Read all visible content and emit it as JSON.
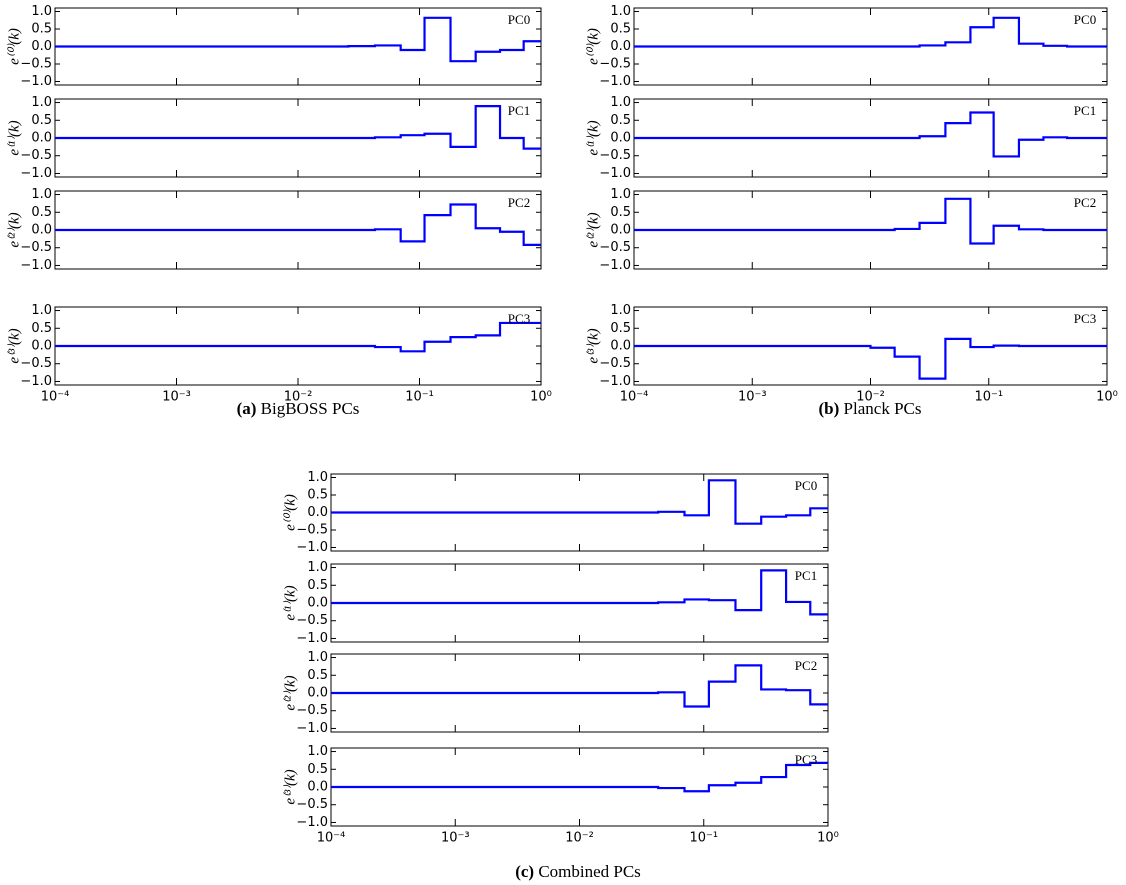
{
  "chart_data": [
    {
      "type": "line",
      "drawstyle": "steps-post",
      "label": "PC0",
      "ylabel": "e⁽⁰⁾(k)",
      "color": "#0000ff",
      "xscale": "log",
      "xlim": [
        0.0001,
        1
      ],
      "ylim": [
        -1.1,
        1.1
      ],
      "xticks": [
        0.0001,
        0.001,
        0.01,
        0.1,
        1
      ],
      "yticks": [
        {
          "value": -1,
          "label": "−1.0"
        },
        {
          "value": -0.5,
          "label": "−0.5"
        },
        {
          "value": 0,
          "label": "0.0"
        },
        {
          "value": 0.5,
          "label": "0.5"
        },
        {
          "value": 1,
          "label": "1.0"
        }
      ],
      "x": [
        0.0001,
        0.01,
        0.016,
        0.026,
        0.043,
        0.07,
        0.11,
        0.18,
        0.29,
        0.46,
        0.72,
        1
      ],
      "values": [
        0,
        0,
        0,
        0.01,
        0.03,
        -0.1,
        0.82,
        -0.42,
        -0.15,
        -0.1,
        0.15,
        0.15
      ]
    },
    {
      "type": "line",
      "drawstyle": "steps-post",
      "label": "PC1",
      "ylabel": "e⁽¹⁾(k)",
      "color": "#0000ff",
      "xscale": "log",
      "xlim": [
        0.0001,
        1
      ],
      "ylim": [
        -1.1,
        1.1
      ],
      "xticks": [
        0.0001,
        0.001,
        0.01,
        0.1,
        1
      ],
      "yticks": [
        {
          "value": -1,
          "label": "−1.0"
        },
        {
          "value": -0.5,
          "label": "−0.5"
        },
        {
          "value": 0,
          "label": "0.0"
        },
        {
          "value": 0.5,
          "label": "0.5"
        },
        {
          "value": 1,
          "label": "1.0"
        }
      ],
      "x": [
        0.0001,
        0.01,
        0.016,
        0.026,
        0.043,
        0.07,
        0.11,
        0.18,
        0.29,
        0.46,
        0.72,
        1
      ],
      "values": [
        0,
        0,
        0,
        0,
        0.02,
        0.08,
        0.12,
        -0.25,
        0.9,
        0,
        -0.3,
        -0.3
      ]
    },
    {
      "type": "line",
      "drawstyle": "steps-post",
      "label": "PC2",
      "ylabel": "e⁽²⁾(k)",
      "color": "#0000ff",
      "xscale": "log",
      "xlim": [
        0.0001,
        1
      ],
      "ylim": [
        -1.1,
        1.1
      ],
      "xticks": [
        0.0001,
        0.001,
        0.01,
        0.1,
        1
      ],
      "yticks": [
        {
          "value": -1,
          "label": "−1.0"
        },
        {
          "value": -0.5,
          "label": "−0.5"
        },
        {
          "value": 0,
          "label": "0.0"
        },
        {
          "value": 0.5,
          "label": "0.5"
        },
        {
          "value": 1,
          "label": "1.0"
        }
      ],
      "x": [
        0.0001,
        0.01,
        0.016,
        0.026,
        0.043,
        0.07,
        0.11,
        0.18,
        0.29,
        0.46,
        0.72,
        1
      ],
      "values": [
        0,
        0,
        0,
        0,
        0.02,
        -0.32,
        0.42,
        0.72,
        0.05,
        -0.05,
        -0.42,
        -0.42
      ]
    },
    {
      "type": "line",
      "drawstyle": "steps-post",
      "label": "PC3",
      "ylabel": "e⁽³⁾(k)",
      "color": "#0000ff",
      "xscale": "log",
      "xlim": [
        0.0001,
        1
      ],
      "ylim": [
        -1.1,
        1.1
      ],
      "xticks": [
        {
          "value": 0.0001,
          "label": "10⁻⁴"
        },
        {
          "value": 0.001,
          "label": "10⁻³"
        },
        {
          "value": 0.01,
          "label": "10⁻²"
        },
        {
          "value": 0.1,
          "label": "10⁻¹"
        },
        {
          "value": 1,
          "label": "10⁰"
        }
      ],
      "yticks": [
        {
          "value": -1,
          "label": "−1.0"
        },
        {
          "value": -0.5,
          "label": "−0.5"
        },
        {
          "value": 0,
          "label": "0.0"
        },
        {
          "value": 0.5,
          "label": "0.5"
        },
        {
          "value": 1,
          "label": "1.0"
        }
      ],
      "x": [
        0.0001,
        0.01,
        0.016,
        0.026,
        0.043,
        0.07,
        0.11,
        0.18,
        0.29,
        0.46,
        0.72,
        1
      ],
      "values": [
        0,
        0,
        0,
        0,
        -0.03,
        -0.15,
        0.12,
        0.25,
        0.3,
        0.65,
        0.65,
        0.65
      ]
    },
    {
      "type": "line",
      "drawstyle": "steps-post",
      "label": "PC0",
      "ylabel": "e⁽⁰⁾(k)",
      "color": "#0000ff",
      "xscale": "log",
      "xlim": [
        0.0001,
        1
      ],
      "ylim": [
        -1.1,
        1.1
      ],
      "xticks": [
        0.0001,
        0.001,
        0.01,
        0.1,
        1
      ],
      "yticks": [
        {
          "value": -1,
          "label": "−1.0"
        },
        {
          "value": -0.5,
          "label": "−0.5"
        },
        {
          "value": 0,
          "label": "0.0"
        },
        {
          "value": 0.5,
          "label": "0.5"
        },
        {
          "value": 1,
          "label": "1.0"
        }
      ],
      "x": [
        0.0001,
        0.01,
        0.016,
        0.026,
        0.043,
        0.07,
        0.11,
        0.18,
        0.29,
        0.46,
        0.72,
        1
      ],
      "values": [
        0,
        0,
        0,
        0.03,
        0.12,
        0.55,
        0.82,
        0.08,
        0.02,
        0,
        0,
        0
      ]
    },
    {
      "type": "line",
      "drawstyle": "steps-post",
      "label": "PC1",
      "ylabel": "e⁽¹⁾(k)",
      "color": "#0000ff",
      "xscale": "log",
      "xlim": [
        0.0001,
        1
      ],
      "ylim": [
        -1.1,
        1.1
      ],
      "xticks": [
        0.0001,
        0.001,
        0.01,
        0.1,
        1
      ],
      "yticks": [
        {
          "value": -1,
          "label": "−1.0"
        },
        {
          "value": -0.5,
          "label": "−0.5"
        },
        {
          "value": 0,
          "label": "0.0"
        },
        {
          "value": 0.5,
          "label": "0.5"
        },
        {
          "value": 1,
          "label": "1.0"
        }
      ],
      "x": [
        0.0001,
        0.01,
        0.016,
        0.026,
        0.043,
        0.07,
        0.11,
        0.18,
        0.29,
        0.46,
        0.72,
        1
      ],
      "values": [
        0,
        0,
        0,
        0.05,
        0.42,
        0.72,
        -0.52,
        -0.05,
        0.02,
        0,
        0,
        0
      ]
    },
    {
      "type": "line",
      "drawstyle": "steps-post",
      "label": "PC2",
      "ylabel": "e⁽²⁾(k)",
      "color": "#0000ff",
      "xscale": "log",
      "xlim": [
        0.0001,
        1
      ],
      "ylim": [
        -1.1,
        1.1
      ],
      "xticks": [
        0.0001,
        0.001,
        0.01,
        0.1,
        1
      ],
      "yticks": [
        {
          "value": -1,
          "label": "−1.0"
        },
        {
          "value": -0.5,
          "label": "−0.5"
        },
        {
          "value": 0,
          "label": "0.0"
        },
        {
          "value": 0.5,
          "label": "0.5"
        },
        {
          "value": 1,
          "label": "1.0"
        }
      ],
      "x": [
        0.0001,
        0.01,
        0.016,
        0.026,
        0.043,
        0.07,
        0.11,
        0.18,
        0.29,
        0.46,
        0.72,
        1
      ],
      "values": [
        0,
        0,
        0.03,
        0.2,
        0.88,
        -0.38,
        0.12,
        0.02,
        0,
        0,
        0,
        0
      ]
    },
    {
      "type": "line",
      "drawstyle": "steps-post",
      "label": "PC3",
      "ylabel": "e⁽³⁾(k)",
      "color": "#0000ff",
      "xscale": "log",
      "xlim": [
        0.0001,
        1
      ],
      "ylim": [
        -1.1,
        1.1
      ],
      "xticks": [
        {
          "value": 0.0001,
          "label": "10⁻⁴"
        },
        {
          "value": 0.001,
          "label": "10⁻³"
        },
        {
          "value": 0.01,
          "label": "10⁻²"
        },
        {
          "value": 0.1,
          "label": "10⁻¹"
        },
        {
          "value": 1,
          "label": "10⁰"
        }
      ],
      "yticks": [
        {
          "value": -1,
          "label": "−1.0"
        },
        {
          "value": -0.5,
          "label": "−0.5"
        },
        {
          "value": 0,
          "label": "0.0"
        },
        {
          "value": 0.5,
          "label": "0.5"
        },
        {
          "value": 1,
          "label": "1.0"
        }
      ],
      "x": [
        0.0001,
        0.01,
        0.016,
        0.026,
        0.043,
        0.07,
        0.11,
        0.18,
        0.29,
        0.46,
        0.72,
        1
      ],
      "values": [
        0,
        -0.05,
        -0.3,
        -0.92,
        0.2,
        -0.03,
        0.01,
        0,
        0,
        0,
        0,
        0
      ]
    },
    {
      "type": "line",
      "drawstyle": "steps-post",
      "label": "PC0",
      "ylabel": "e⁽⁰⁾(k)",
      "color": "#0000ff",
      "xscale": "log",
      "xlim": [
        0.0001,
        1
      ],
      "ylim": [
        -1.1,
        1.1
      ],
      "xticks": [
        0.0001,
        0.001,
        0.01,
        0.1,
        1
      ],
      "yticks": [
        {
          "value": -1,
          "label": "−1.0"
        },
        {
          "value": -0.5,
          "label": "−0.5"
        },
        {
          "value": 0,
          "label": "0.0"
        },
        {
          "value": 0.5,
          "label": "0.5"
        },
        {
          "value": 1,
          "label": "1.0"
        }
      ],
      "x": [
        0.0001,
        0.01,
        0.016,
        0.026,
        0.043,
        0.07,
        0.11,
        0.18,
        0.29,
        0.46,
        0.72,
        1
      ],
      "values": [
        0,
        0,
        0,
        0,
        0.02,
        -0.08,
        0.92,
        -0.32,
        -0.12,
        -0.08,
        0.12,
        0.12
      ]
    },
    {
      "type": "line",
      "drawstyle": "steps-post",
      "label": "PC1",
      "ylabel": "e⁽¹⁾(k)",
      "color": "#0000ff",
      "xscale": "log",
      "xlim": [
        0.0001,
        1
      ],
      "ylim": [
        -1.1,
        1.1
      ],
      "xticks": [
        0.0001,
        0.001,
        0.01,
        0.1,
        1
      ],
      "yticks": [
        {
          "value": -1,
          "label": "−1.0"
        },
        {
          "value": -0.5,
          "label": "−0.5"
        },
        {
          "value": 0,
          "label": "0.0"
        },
        {
          "value": 0.5,
          "label": "0.5"
        },
        {
          "value": 1,
          "label": "1.0"
        }
      ],
      "x": [
        0.0001,
        0.01,
        0.016,
        0.026,
        0.043,
        0.07,
        0.11,
        0.18,
        0.29,
        0.46,
        0.72,
        1
      ],
      "values": [
        0,
        0,
        0,
        0,
        0.02,
        0.1,
        0.08,
        -0.2,
        0.92,
        0.03,
        -0.32,
        -0.32
      ]
    },
    {
      "type": "line",
      "drawstyle": "steps-post",
      "label": "PC2",
      "ylabel": "e⁽²⁾(k)",
      "color": "#0000ff",
      "xscale": "log",
      "xlim": [
        0.0001,
        1
      ],
      "ylim": [
        -1.1,
        1.1
      ],
      "xticks": [
        0.0001,
        0.001,
        0.01,
        0.1,
        1
      ],
      "yticks": [
        {
          "value": -1,
          "label": "−1.0"
        },
        {
          "value": -0.5,
          "label": "−0.5"
        },
        {
          "value": 0,
          "label": "0.0"
        },
        {
          "value": 0.5,
          "label": "0.5"
        },
        {
          "value": 1,
          "label": "1.0"
        }
      ],
      "x": [
        0.0001,
        0.01,
        0.016,
        0.026,
        0.043,
        0.07,
        0.11,
        0.18,
        0.29,
        0.46,
        0.72,
        1
      ],
      "values": [
        0,
        0,
        0,
        0,
        0.02,
        -0.38,
        0.32,
        0.78,
        0.1,
        0.08,
        -0.32,
        -0.32
      ]
    },
    {
      "type": "line",
      "drawstyle": "steps-post",
      "label": "PC3",
      "ylabel": "e⁽³⁾(k)",
      "color": "#0000ff",
      "xscale": "log",
      "xlim": [
        0.0001,
        1
      ],
      "ylim": [
        -1.1,
        1.1
      ],
      "xticks": [
        {
          "value": 0.0001,
          "label": "10⁻⁴"
        },
        {
          "value": 0.001,
          "label": "10⁻³"
        },
        {
          "value": 0.01,
          "label": "10⁻²"
        },
        {
          "value": 0.1,
          "label": "10⁻¹"
        },
        {
          "value": 1,
          "label": "10⁰"
        }
      ],
      "yticks": [
        {
          "value": -1,
          "label": "−1.0"
        },
        {
          "value": -0.5,
          "label": "−0.5"
        },
        {
          "value": 0,
          "label": "0.0"
        },
        {
          "value": 0.5,
          "label": "0.5"
        },
        {
          "value": 1,
          "label": "1.0"
        }
      ],
      "x": [
        0.0001,
        0.01,
        0.016,
        0.026,
        0.043,
        0.07,
        0.11,
        0.18,
        0.29,
        0.46,
        0.72,
        1
      ],
      "values": [
        0,
        0,
        0,
        0,
        -0.03,
        -0.12,
        0.05,
        0.12,
        0.28,
        0.62,
        0.68,
        0.68
      ]
    }
  ],
  "captions": [
    {
      "label": "(a)",
      "text": "BigBOSS PCs"
    },
    {
      "label": "(b)",
      "text": "Planck PCs"
    },
    {
      "label": "(c)",
      "text": "Combined PCs"
    }
  ]
}
